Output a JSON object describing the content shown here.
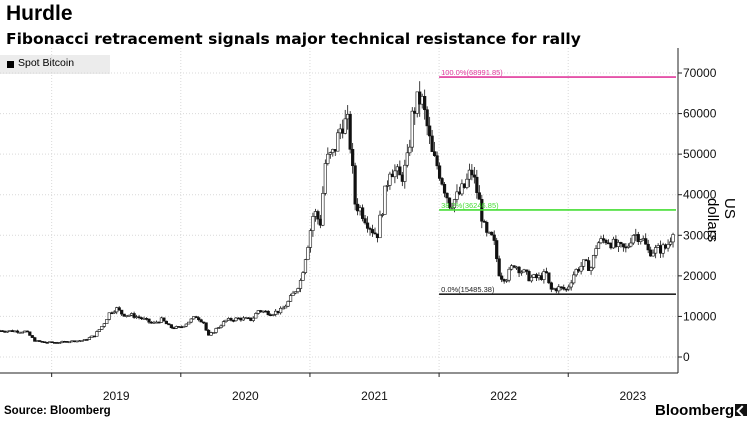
{
  "header": {
    "title": "Hurdle",
    "subtitle": "Fibonacci retracement signals major technical resistance for rally"
  },
  "legend": {
    "label": "Spot Bitcoin"
  },
  "footer": {
    "source": "Source: Bloomberg",
    "brand": "Bloomberg"
  },
  "colors": {
    "candle": "#111111",
    "fib_100": "#e0399c",
    "fib_382": "#44dd33",
    "fib_0": "#222222",
    "grid": "#d9d9d9"
  },
  "chart_data": {
    "type": "line",
    "title": "Hurdle",
    "subtitle": "Fibonacci retracement signals major technical resistance for rally",
    "ylabel": "US dollars",
    "xlabel": "",
    "ylim": [
      -2000,
      72000
    ],
    "yticks": [
      0,
      10000,
      20000,
      30000,
      40000,
      50000,
      60000,
      70000
    ],
    "yticklabels": [
      "0",
      "10000",
      "20000",
      "30000",
      "40000",
      "50000",
      "60000",
      "70000"
    ],
    "xlim": [
      2018.6,
      2023.85
    ],
    "xtick_labels": [
      {
        "label": "2019",
        "x": 2019.5
      },
      {
        "label": "2020",
        "x": 2020.5
      },
      {
        "label": "2021",
        "x": 2021.5
      },
      {
        "label": "2022",
        "x": 2022.5
      },
      {
        "label": "2023",
        "x": 2023.5
      }
    ],
    "year_boundaries": [
      2019.0,
      2020.0,
      2021.0,
      2022.0,
      2023.0
    ],
    "grid": true,
    "legend_position": "top-left",
    "series": [
      {
        "name": "Spot Bitcoin",
        "style": "candlestick-weekly",
        "points": [
          [
            2018.6,
            6500
          ],
          [
            2018.7,
            6400
          ],
          [
            2018.8,
            6300
          ],
          [
            2018.87,
            4000
          ],
          [
            2018.95,
            3600
          ],
          [
            2019.05,
            3600
          ],
          [
            2019.15,
            3900
          ],
          [
            2019.25,
            4100
          ],
          [
            2019.33,
            5300
          ],
          [
            2019.4,
            8000
          ],
          [
            2019.45,
            11000
          ],
          [
            2019.5,
            12000
          ],
          [
            2019.55,
            10500
          ],
          [
            2019.62,
            10300
          ],
          [
            2019.7,
            9500
          ],
          [
            2019.78,
            8200
          ],
          [
            2019.85,
            9200
          ],
          [
            2019.92,
            7300
          ],
          [
            2019.99,
            7200
          ],
          [
            2020.05,
            8500
          ],
          [
            2020.12,
            10000
          ],
          [
            2020.18,
            8500
          ],
          [
            2020.21,
            5000
          ],
          [
            2020.27,
            6800
          ],
          [
            2020.35,
            9000
          ],
          [
            2020.45,
            9500
          ],
          [
            2020.55,
            9200
          ],
          [
            2020.6,
            11500
          ],
          [
            2020.7,
            10800
          ],
          [
            2020.78,
            11500
          ],
          [
            2020.83,
            13500
          ],
          [
            2020.88,
            16000
          ],
          [
            2020.93,
            19000
          ],
          [
            2020.99,
            29000
          ],
          [
            2021.03,
            36000
          ],
          [
            2021.08,
            33000
          ],
          [
            2021.12,
            48000
          ],
          [
            2021.18,
            50000
          ],
          [
            2021.25,
            58000
          ],
          [
            2021.3,
            57000
          ],
          [
            2021.35,
            38000
          ],
          [
            2021.4,
            36000
          ],
          [
            2021.47,
            32000
          ],
          [
            2021.52,
            30000
          ],
          [
            2021.58,
            40000
          ],
          [
            2021.62,
            47000
          ],
          [
            2021.7,
            44000
          ],
          [
            2021.75,
            47000
          ],
          [
            2021.8,
            61000
          ],
          [
            2021.86,
            64000
          ],
          [
            2021.9,
            58000
          ],
          [
            2021.95,
            49000
          ],
          [
            2021.99,
            47000
          ],
          [
            2022.04,
            42000
          ],
          [
            2022.08,
            38000
          ],
          [
            2022.13,
            39000
          ],
          [
            2022.2,
            42000
          ],
          [
            2022.25,
            46000
          ],
          [
            2022.3,
            40000
          ],
          [
            2022.36,
            30000
          ],
          [
            2022.42,
            29000
          ],
          [
            2022.47,
            20000
          ],
          [
            2022.52,
            19500
          ],
          [
            2022.58,
            23000
          ],
          [
            2022.63,
            21500
          ],
          [
            2022.7,
            19500
          ],
          [
            2022.77,
            19500
          ],
          [
            2022.83,
            20500
          ],
          [
            2022.86,
            16500
          ],
          [
            2022.92,
            17000
          ],
          [
            2022.99,
            16600
          ],
          [
            2023.05,
            21000
          ],
          [
            2023.12,
            23000
          ],
          [
            2023.18,
            22000
          ],
          [
            2023.22,
            28000
          ],
          [
            2023.3,
            29000
          ],
          [
            2023.38,
            27000
          ],
          [
            2023.45,
            26500
          ],
          [
            2023.5,
            30500
          ],
          [
            2023.57,
            29500
          ],
          [
            2023.62,
            26000
          ],
          [
            2023.7,
            26500
          ],
          [
            2023.76,
            27000
          ],
          [
            2023.8,
            30000
          ],
          [
            2023.83,
            34500
          ]
        ]
      }
    ],
    "fibonacci_levels": [
      {
        "label": "100.0%(68991.85)",
        "value": 68991.85,
        "x_start": 2022.0,
        "color": "#e0399c"
      },
      {
        "label": "38.2%(36246.85)",
        "value": 36246.85,
        "x_start": 2022.0,
        "color": "#44dd33"
      },
      {
        "label": "0.0%(15485.38)",
        "value": 15485.38,
        "x_start": 2022.0,
        "color": "#222222"
      }
    ]
  }
}
